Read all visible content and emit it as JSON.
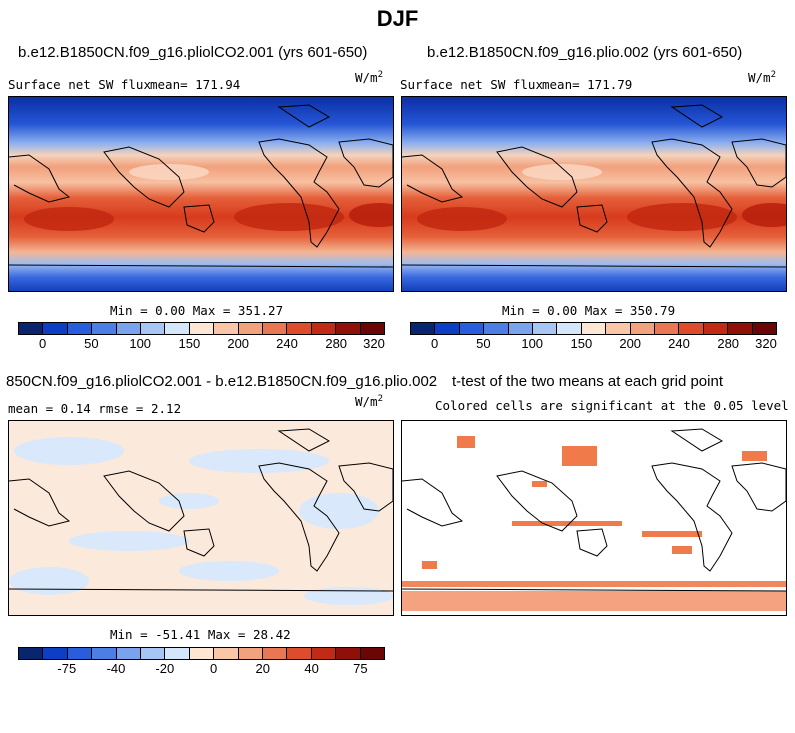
{
  "main_title": "DJF",
  "panels": [
    {
      "title": "b.e12.B1850CN.f09_g16.pliolCO2.001 (yrs 601-650)",
      "left_label": "Surface net SW flux",
      "mean_label": "mean= 171.94",
      "units": "W/m",
      "units_sup": "2",
      "minmax": "Min =   0.00 Max = 351.27",
      "cbar_colors": [
        "#08256e",
        "#0d3ec6",
        "#2a5ddc",
        "#4d7ee6",
        "#7aa3ee",
        "#a7c6f4",
        "#d4e6f9",
        "#fde6d3",
        "#f9c6a8",
        "#f2a27c",
        "#ea7753",
        "#df4c2b",
        "#c12a15",
        "#8e1008",
        "#6b0606"
      ],
      "cbar_ticks": [
        "0",
        "50",
        "100",
        "150",
        "200",
        "240",
        "280",
        "320"
      ]
    },
    {
      "title": "b.e12.B1850CN.f09_g16.plio.002 (yrs 601-650)",
      "left_label": "Surface net SW flux",
      "mean_label": "mean= 171.79",
      "units": "W/m",
      "units_sup": "2",
      "minmax": "Min =   0.00 Max = 350.79",
      "cbar_colors": [
        "#08256e",
        "#0d3ec6",
        "#2a5ddc",
        "#4d7ee6",
        "#7aa3ee",
        "#a7c6f4",
        "#d4e6f9",
        "#fde6d3",
        "#f9c6a8",
        "#f2a27c",
        "#ea7753",
        "#df4c2b",
        "#c12a15",
        "#8e1008",
        "#6b0606"
      ],
      "cbar_ticks": [
        "0",
        "50",
        "100",
        "150",
        "200",
        "240",
        "280",
        "320"
      ]
    },
    {
      "title": "850CN.f09_g16.pliolCO2.001 - b.e12.B1850CN.f09_g16.plio.002",
      "left_label": "mean =   0.14     rmse =   2.12",
      "units": "W/m",
      "units_sup": "2",
      "minmax": "Min = -51.41 Max =  28.42",
      "cbar_colors": [
        "#08256e",
        "#0d3ec6",
        "#2a5ddc",
        "#4d7ee6",
        "#7aa3ee",
        "#a7c6f4",
        "#d4e6f9",
        "#fde6d3",
        "#f9c6a8",
        "#f2a27c",
        "#ea7753",
        "#df4c2b",
        "#c12a15",
        "#8e1008",
        "#6b0606"
      ],
      "cbar_ticks": [
        "-75",
        "-40",
        "-20",
        "0",
        "20",
        "40",
        "75"
      ]
    },
    {
      "title": "t-test of the two means at each grid point",
      "left_label": "Colored cells are significant at the 0.05 level"
    }
  ],
  "colors": {
    "land_line": "#000000",
    "sig_color": "#f07a4a"
  }
}
